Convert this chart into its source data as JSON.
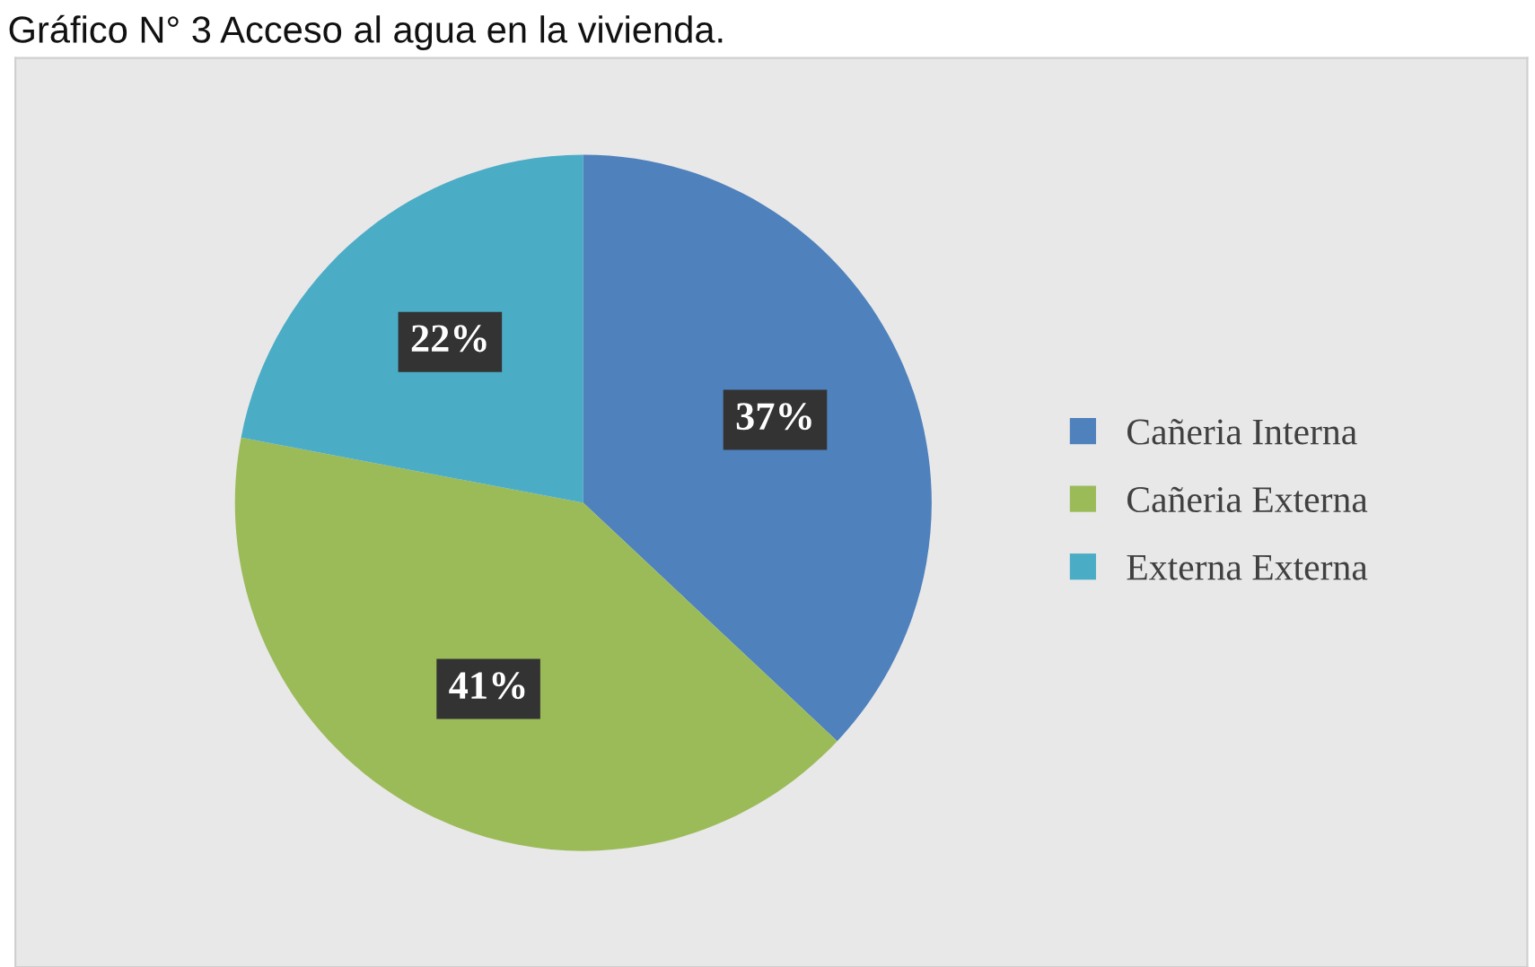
{
  "chart_data": {
    "type": "pie",
    "title": "Gráfico N° 3 Acceso al agua en la vivienda.",
    "categories": [
      "Cañeria Interna",
      "Cañeria Externa",
      "Externa Externa"
    ],
    "values": [
      37,
      41,
      22
    ],
    "colors": [
      "#4f81bd",
      "#9bbb59",
      "#4bacc6"
    ],
    "value_labels": [
      "37%",
      "41%",
      "22%"
    ],
    "legend": "right"
  }
}
